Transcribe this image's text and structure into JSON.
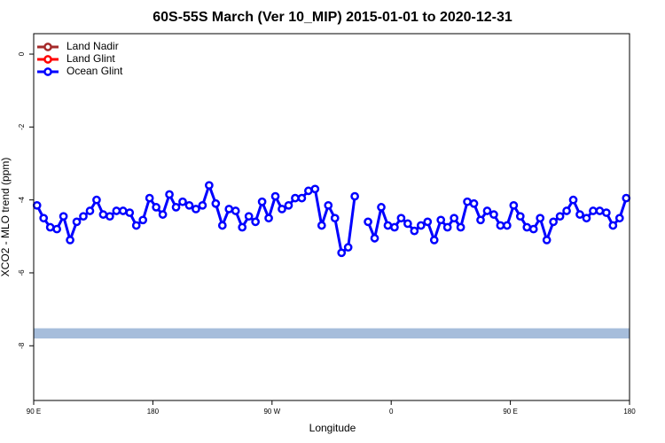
{
  "chart_data": {
    "type": "line",
    "title": "60S-55S March (Ver 10_MIP)   2015-01-01 to 2020-12-31",
    "xlabel": "Longitude",
    "ylabel": "XCO2 - MLO trend (ppm)",
    "xlim": [
      90,
      540
    ],
    "ylim": [
      -9.5,
      0.56
    ],
    "xticks": [
      {
        "value": 90,
        "label": "90 E"
      },
      180,
      {
        "value": 270,
        "label": "90 W"
      },
      {
        "value": 360,
        "label": "0"
      },
      {
        "value": 450,
        "label": "90 E"
      },
      {
        "value": 540,
        "label": "180"
      }
    ],
    "yticks": [
      0,
      -2,
      -4,
      -6,
      -8
    ],
    "legend": "top-left",
    "band": [
      -7.8,
      -7.52
    ],
    "band_color": "#a6bddb",
    "x": [
      92.5,
      97.5,
      102.5,
      107.5,
      112.5,
      117.5,
      122.5,
      127.5,
      132.5,
      137.5,
      142.5,
      147.5,
      152.5,
      157.5,
      162.5,
      167.5,
      172.5,
      177.5,
      182.5,
      187.5,
      192.5,
      197.5,
      202.5,
      207.5,
      212.5,
      217.5,
      222.5,
      227.5,
      232.5,
      237.5,
      242.5,
      247.5,
      252.5,
      257.5,
      262.5,
      267.5,
      272.5,
      277.5,
      282.5,
      287.5,
      292.5,
      297.5,
      302.5,
      307.5,
      312.5,
      317.5,
      322.5,
      327.5,
      332.5,
      337.5,
      342.5,
      347.5,
      352.5,
      357.5,
      362.5,
      367.5,
      372.5,
      377.5,
      382.5,
      387.5,
      392.5,
      397.5,
      402.5,
      407.5,
      412.5,
      417.5,
      422.5,
      427.5,
      432.5,
      437.5,
      442.5,
      447.5,
      452.5,
      457.5,
      462.5,
      467.5,
      472.5,
      477.5,
      482.5,
      487.5,
      492.5,
      497.5,
      502.5,
      507.5,
      512.5,
      517.5,
      522.5,
      527.5,
      532.5,
      537.5
    ],
    "series": [
      {
        "name": "Land Nadir",
        "color": "#a52a2a",
        "values": [
          null,
          null,
          null,
          null,
          null,
          null,
          null,
          null,
          null,
          null,
          null,
          null,
          null,
          null,
          null,
          null,
          null,
          null,
          null,
          null,
          null,
          null,
          null,
          null,
          null,
          null,
          null,
          null,
          null,
          null,
          null,
          null,
          null,
          null,
          null,
          null,
          null,
          null,
          null,
          null,
          null,
          null,
          null,
          null,
          null,
          null,
          null,
          null,
          null,
          null,
          null,
          null,
          null,
          null,
          null,
          null,
          null,
          null,
          null,
          null,
          null,
          null,
          null,
          null,
          null,
          null,
          null,
          null,
          null,
          null,
          null,
          null,
          null,
          null,
          null,
          null,
          null,
          null,
          null,
          null,
          null,
          null,
          null,
          null,
          null,
          null,
          null,
          null,
          null,
          null
        ]
      },
      {
        "name": "Land Glint",
        "color": "#ff0000",
        "values": [
          null,
          null,
          null,
          null,
          null,
          null,
          null,
          null,
          null,
          null,
          null,
          null,
          null,
          null,
          null,
          null,
          null,
          null,
          null,
          null,
          null,
          null,
          null,
          null,
          null,
          null,
          null,
          null,
          null,
          null,
          null,
          null,
          null,
          null,
          null,
          null,
          null,
          null,
          null,
          null,
          null,
          null,
          null,
          null,
          null,
          null,
          null,
          null,
          null,
          null,
          null,
          null,
          null,
          null,
          null,
          null,
          null,
          null,
          null,
          null,
          null,
          null,
          null,
          null,
          null,
          null,
          null,
          null,
          null,
          null,
          null,
          null,
          null,
          null,
          null,
          null,
          null,
          null,
          null,
          null,
          null,
          null,
          null,
          null,
          null,
          null,
          null,
          null,
          null,
          null
        ]
      },
      {
        "name": "Ocean Glint",
        "color": "#0000ff",
        "values": [
          -4.15,
          -4.5,
          -4.75,
          -4.8,
          -4.45,
          -5.1,
          -4.6,
          -4.45,
          -4.3,
          -4.0,
          -4.4,
          -4.45,
          -4.3,
          -4.3,
          -4.35,
          -4.7,
          -4.55,
          -3.95,
          -4.2,
          -4.4,
          -3.85,
          -4.2,
          -4.05,
          -4.15,
          -4.25,
          -4.15,
          -3.6,
          -4.1,
          -4.7,
          -4.25,
          -4.3,
          -4.75,
          -4.45,
          -4.6,
          -4.05,
          -4.5,
          -3.9,
          -4.25,
          -4.15,
          -3.95,
          -3.95,
          -3.75,
          -3.7,
          -4.7,
          -4.15,
          -4.5,
          -5.45,
          -5.3,
          -3.9,
          null,
          -4.6,
          -5.05,
          -4.2,
          -4.7,
          -4.75,
          -4.5,
          -4.65,
          -4.85,
          -4.7,
          -4.6,
          -5.1,
          -4.55,
          -4.75,
          -4.5,
          -4.75,
          -4.05,
          -4.1,
          -4.55,
          -4.3,
          -4.4,
          -4.7,
          -4.7,
          -4.15,
          -4.45,
          -4.75,
          -4.8,
          -4.5,
          -5.1,
          -4.6,
          -4.45,
          -4.3,
          -4.0,
          -4.4,
          -4.5,
          -4.3,
          -4.3,
          -4.35,
          -4.7,
          -4.5,
          -3.95
        ]
      }
    ]
  }
}
